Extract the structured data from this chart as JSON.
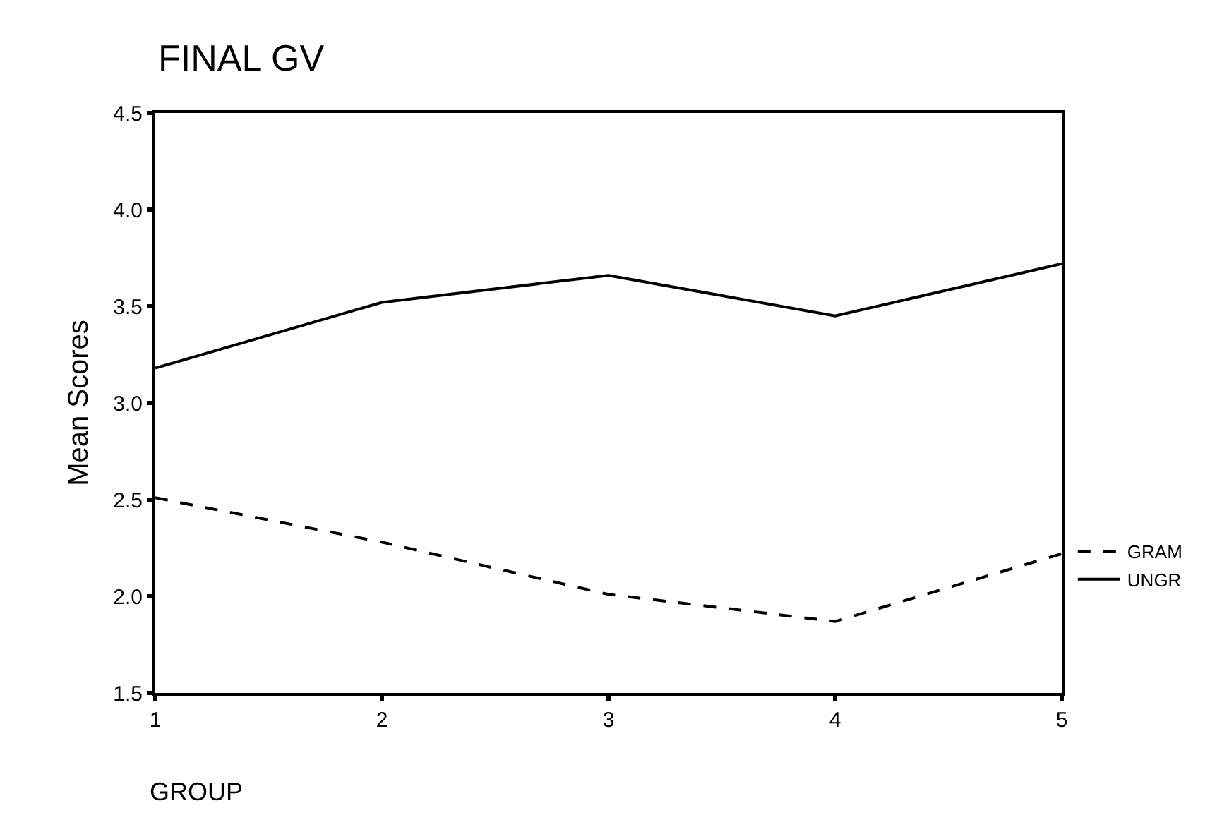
{
  "chart_data": {
    "type": "line",
    "title": "FINAL GV",
    "xlabel": "GROUP",
    "ylabel": "Mean Scores",
    "x": [
      1,
      2,
      3,
      4,
      5
    ],
    "series": [
      {
        "name": "GRAM",
        "color": "#000000",
        "line_style": "dashed",
        "values": [
          2.51,
          2.28,
          2.01,
          1.87,
          2.22
        ]
      },
      {
        "name": "UNGR",
        "color": "#000000",
        "line_style": "solid",
        "values": [
          3.18,
          3.52,
          3.66,
          3.45,
          3.72
        ]
      }
    ],
    "xlim": [
      1,
      5
    ],
    "xticks": [
      1,
      2,
      3,
      4,
      5
    ],
    "ylim": [
      1.5,
      4.5
    ],
    "yticks": [
      {
        "value": 1.5,
        "label": "1.5"
      },
      {
        "value": 2.0,
        "label": "2.0"
      },
      {
        "value": 2.5,
        "label": "2.5"
      },
      {
        "value": 3.0,
        "label": "3.0"
      },
      {
        "value": 3.5,
        "label": "3.5"
      },
      {
        "value": 4.0,
        "label": "4.0"
      },
      {
        "value": 4.5,
        "label": "4.5"
      }
    ],
    "legend": "right",
    "marker": "none"
  }
}
